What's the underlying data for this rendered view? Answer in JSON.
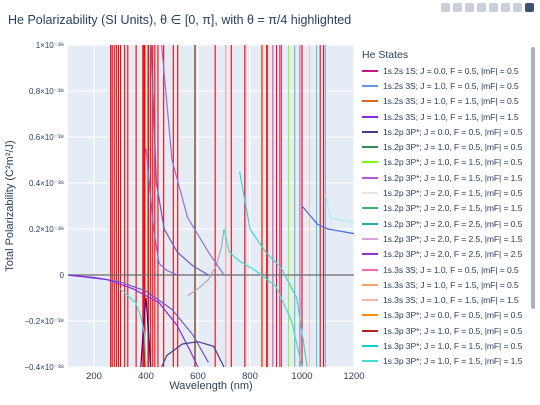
{
  "title": "He Polarizability (SI Units), θ ∈ [0, π], with θ = π/4 highlighted",
  "modebar": [
    "camera-icon",
    "zoom-icon",
    "pan-icon",
    "zoom-in-icon",
    "zoom-out-icon",
    "autoscale-icon",
    "reset-icon",
    "plotly-logo-icon"
  ],
  "chart_data": {
    "type": "line",
    "xlabel": "Wavelength (nm)",
    "ylabel": "Total Polarizability (C²m²/J)",
    "xlim": [
      100,
      1200
    ],
    "ylim": [
      -4e-39,
      1e-38
    ],
    "xticks": [
      200,
      400,
      600,
      800,
      1000,
      1200
    ],
    "xtick_labels": [
      "200",
      "400",
      "600",
      "800",
      "1000",
      "1200"
    ],
    "yticks": [
      -4e-39,
      -2e-39,
      0,
      2e-39,
      4e-39,
      6e-39,
      8e-39,
      1e-38
    ],
    "ytick_labels": [
      "−0.4×10⁻³⁸",
      "−0.2×10⁻³⁸",
      "0",
      "0.2×10⁻³⁸",
      "0.4×10⁻³⁸",
      "0.6×10⁻³⁸",
      "0.8×10⁻³⁸",
      "1×10⁻³⁸"
    ],
    "grid": true,
    "legend_position": "right",
    "legend_title": "He States",
    "highlight_color": "#ff0000",
    "resonance_wavelengths_nm": [
      264,
      270,
      278,
      286,
      294,
      302,
      318,
      330,
      362,
      388,
      392,
      396,
      410,
      418,
      426,
      434,
      446,
      468,
      505,
      522,
      588,
      666,
      706,
      728,
      780,
      846,
      864,
      902,
      920,
      1000,
      1070,
      1083
    ],
    "asymptote_wavelengths_nm": [
      406,
      590,
      706,
      784,
      849,
      868,
      888,
      914,
      948,
      972,
      992,
      1029,
      1056,
      1090
    ],
    "series": [
      {
        "name": "1s.2s 1S; J = 0.0, F = 0.5, |m_F| = 0.5",
        "color": "#c71585"
      },
      {
        "name": "1s.2s 3S; J = 1.0, F = 0.5, |m_F| = 0.5",
        "color": "#6495ed"
      },
      {
        "name": "1s.2s 3S; J = 1.0, F = 1.5, |m_F| = 0.5",
        "color": "#d2691e"
      },
      {
        "name": "1s.2s 3S; J = 1.0, F = 1.5, |m_F| = 1.5",
        "color": "#8a2be2"
      },
      {
        "name": "1s.2p 3P*; J = 0.0, F = 0.5, |m_F| = 0.5",
        "color": "#483d8b"
      },
      {
        "name": "1s.2p 3P*; J = 1.0, F = 0.5, |m_F| = 0.5",
        "color": "#2e8b57"
      },
      {
        "name": "1s.2p 3P*; J = 1.0, F = 1.5, |m_F| = 0.5",
        "color": "#7cfc00"
      },
      {
        "name": "1s.2p 3P*; J = 1.0, F = 1.5, |m_F| = 1.5",
        "color": "#ba55d3"
      },
      {
        "name": "1s.2p 3P*; J = 2.0, F = 1.5, |m_F| = 0.5",
        "color": "#e6e6e6"
      },
      {
        "name": "1s.2p 3P*; J = 2.0, F = 1.5, |m_F| = 1.5",
        "color": "#3cb371"
      },
      {
        "name": "1s.2p 3P*; J = 2.0, F = 2.5, |m_F| = 0.5",
        "color": "#20b2aa"
      },
      {
        "name": "1s.2p 3P*; J = 2.0, F = 2.5, |m_F| = 1.5",
        "color": "#dda0dd"
      },
      {
        "name": "1s.2p 3P*; J = 2.0, F = 2.5, |m_F| = 2.5",
        "color": "#9932cc"
      },
      {
        "name": "1s.3s 3S; J = 1.0, F = 0.5, |m_F| = 0.5",
        "color": "#ff69b4"
      },
      {
        "name": "1s.3s 3S; J = 1.0, F = 1.5, |m_F| = 0.5",
        "color": "#f4a460"
      },
      {
        "name": "1s.3s 3S; J = 1.0, F = 1.5, |m_F| = 1.5",
        "color": "#f5b7a6"
      },
      {
        "name": "1s.3p 3P*; J = 0.0, F = 0.5, |m_F| = 0.5",
        "color": "#ff8c00"
      },
      {
        "name": "1s.3p 3P*; J = 1.0, F = 0.5, |m_F| = 0.5",
        "color": "#b22222"
      },
      {
        "name": "1s.3p 3P*; J = 1.0, F = 1.5, |m_F| = 0.5",
        "color": "#00ced1"
      },
      {
        "name": "1s.3p 3P*; J = 1.0, F = 1.5, |m_F| = 1.5",
        "color": "#40e0d0"
      }
    ],
    "curves": [
      {
        "color": "#696969",
        "points": [
          [
            100,
            0
          ],
          [
            1200,
            0
          ]
        ]
      },
      {
        "color": "#6a5acd",
        "points": [
          [
            100,
            -1e-41
          ],
          [
            200,
            -1e-40
          ],
          [
            300,
            -3e-40
          ],
          [
            400,
            -7e-40
          ],
          [
            500,
            -1.5e-39
          ],
          [
            580,
            -2.6e-39
          ],
          [
            640,
            -3.8e-39
          ]
        ]
      },
      {
        "color": "#8a2be2",
        "points": [
          [
            100,
            0
          ],
          [
            250,
            -2e-40
          ],
          [
            350,
            -6e-40
          ],
          [
            450,
            -1.2e-39
          ],
          [
            520,
            -2.2e-39
          ],
          [
            570,
            -3.3e-39
          ],
          [
            600,
            -4e-39
          ]
        ]
      },
      {
        "color": "#4b0082",
        "points": [
          [
            380,
            -4e-39
          ],
          [
            392,
            -2e-39
          ],
          [
            400,
            -1e-39
          ],
          [
            410,
            -2.5e-39
          ],
          [
            418,
            -4e-39
          ]
        ]
      },
      {
        "color": "#483d8b",
        "points": [
          [
            460,
            -4e-39
          ],
          [
            480,
            -3.5e-39
          ],
          [
            540,
            -3e-39
          ],
          [
            600,
            -2.9e-39
          ],
          [
            660,
            -3.1e-39
          ],
          [
            700,
            -4e-39
          ]
        ]
      },
      {
        "color": "#aaaaaa",
        "points": [
          [
            560,
            -9e-40
          ],
          [
            600,
            -6e-40
          ],
          [
            640,
            -2e-40
          ],
          [
            670,
            4e-40
          ],
          [
            690,
            1.2e-39
          ],
          [
            700,
            2e-39
          ]
        ]
      },
      {
        "color": "#7b68ee",
        "points": [
          [
            400,
            5.5e-39
          ],
          [
            430,
            2e-39
          ],
          [
            450,
            5e-40
          ],
          [
            480,
            2e-40
          ],
          [
            520,
            0.0
          ]
        ]
      },
      {
        "color": "#6a5acd",
        "points": [
          [
            420,
            1e-38
          ],
          [
            440,
            4e-39
          ],
          [
            470,
            2e-39
          ],
          [
            520,
            1e-39
          ],
          [
            580,
            4e-40
          ],
          [
            640,
            0.0
          ]
        ]
      },
      {
        "color": "#9370db",
        "points": [
          [
            460,
            1e-38
          ],
          [
            500,
            5e-39
          ],
          [
            560,
            2.5e-39
          ],
          [
            640,
            1e-39
          ],
          [
            700,
            0.0
          ]
        ]
      },
      {
        "color": "#40e0d0",
        "points": [
          [
            700,
            2e-39
          ],
          [
            720,
            1e-39
          ],
          [
            760,
            6e-40
          ],
          [
            820,
            2e-40
          ],
          [
            900,
            -5e-40
          ],
          [
            960,
            -2e-39
          ],
          [
            1000,
            -4e-39
          ]
        ]
      },
      {
        "color": "#48d1cc",
        "points": [
          [
            760,
            4.5e-39
          ],
          [
            800,
            2e-39
          ],
          [
            860,
            1e-39
          ],
          [
            920,
            3e-40
          ],
          [
            980,
            -1e-39
          ],
          [
            1020,
            -4e-39
          ]
        ]
      },
      {
        "color": "#4169e1",
        "points": [
          [
            1000,
            3e-39
          ],
          [
            1060,
            2.2e-39
          ],
          [
            1100,
            2e-39
          ],
          [
            1150,
            1.9e-39
          ],
          [
            1200,
            1.8e-39
          ]
        ]
      },
      {
        "color": "#afeeee",
        "points": [
          [
            1090,
            3.5e-39
          ],
          [
            1110,
            2.5e-39
          ],
          [
            1140,
            2.4e-39
          ],
          [
            1200,
            2.3e-39
          ]
        ]
      },
      {
        "color": "#40e0d0",
        "points": [
          [
            300,
            -6e-40
          ],
          [
            340,
            -1e-39
          ],
          [
            360,
            -1.2e-39
          ],
          [
            380,
            -1.8e-39
          ],
          [
            395,
            -2.6e-39
          ],
          [
            400,
            -4e-39
          ]
        ]
      }
    ]
  },
  "legend": {
    "title": "He States"
  }
}
